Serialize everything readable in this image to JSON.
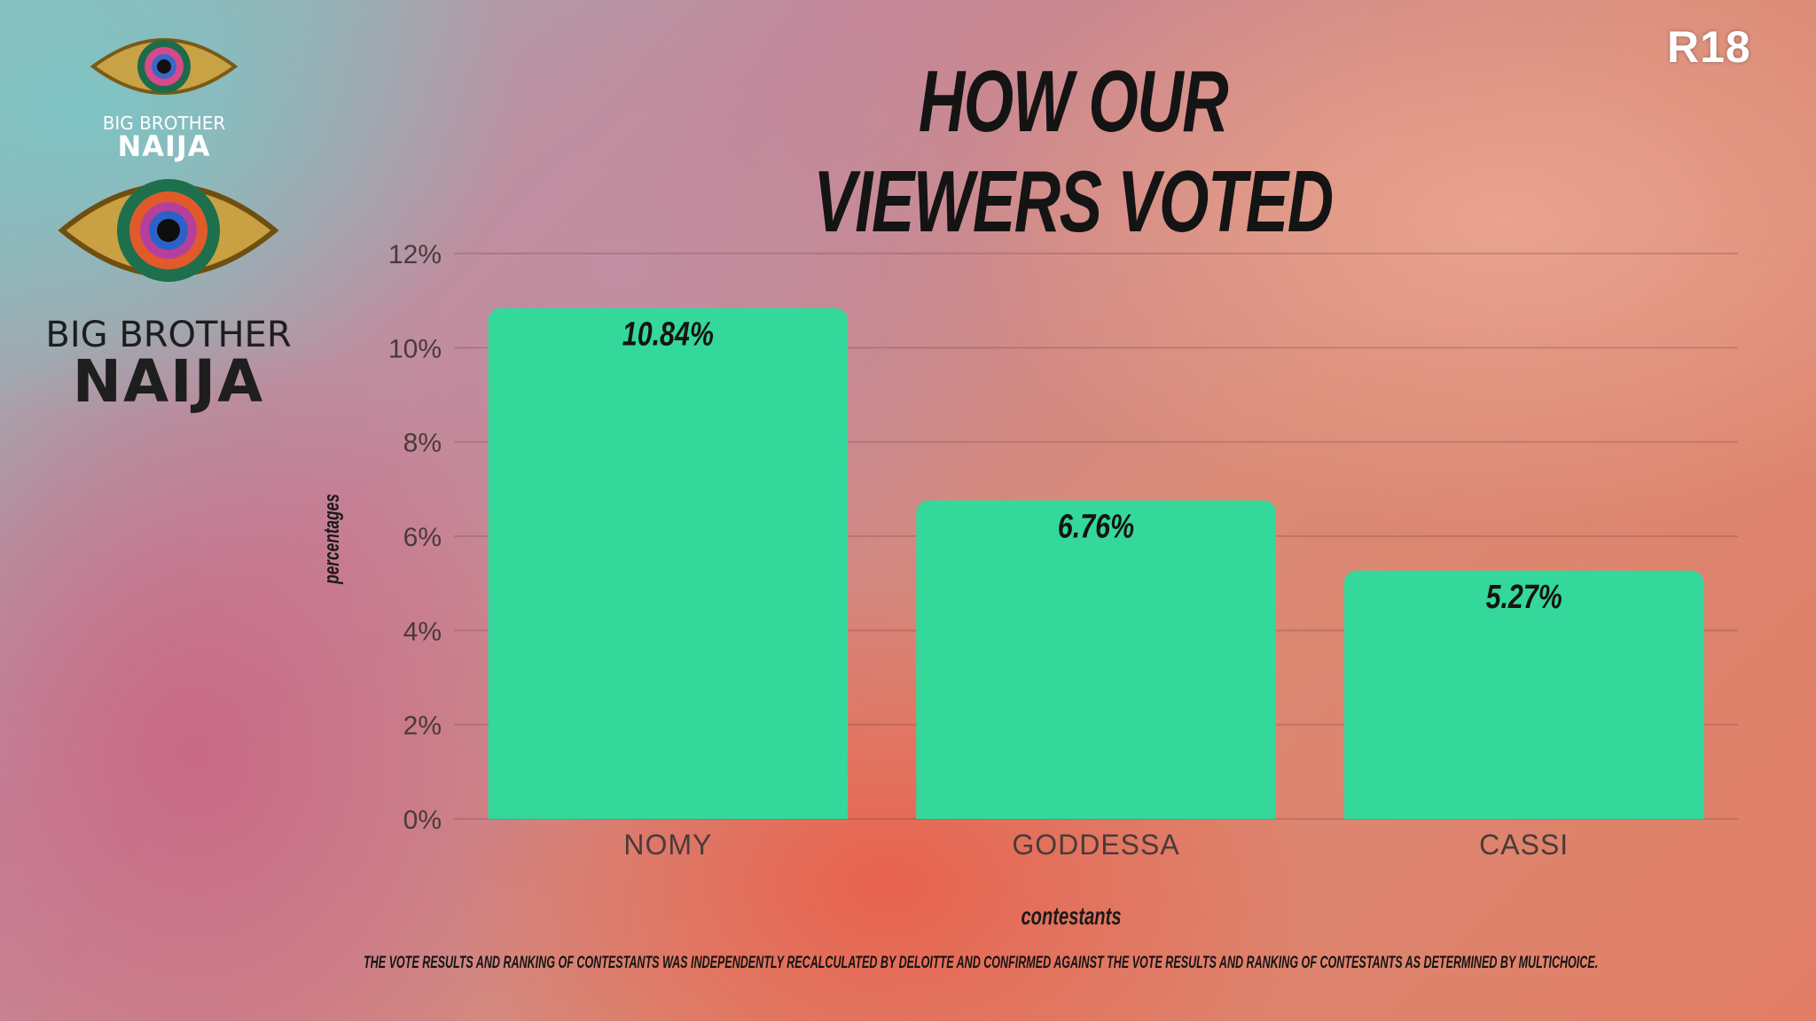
{
  "overlay": {
    "rating": "R18"
  },
  "logo": {
    "line1": "BIG BROTHER",
    "line2": "NAIJA"
  },
  "chart_data": {
    "type": "bar",
    "title": "HOW OUR VIEWERS VOTED",
    "categories": [
      "NOMY",
      "GODDESSA",
      "CASSI"
    ],
    "values": [
      10.84,
      6.76,
      5.27
    ],
    "data_labels": [
      "10.84%",
      "6.76%",
      "5.27%"
    ],
    "ylim": [
      0,
      12
    ],
    "yticks": [
      "0%",
      "2%",
      "4%",
      "6%",
      "8%",
      "10%",
      "12%"
    ],
    "ytick_values": [
      0,
      2,
      4,
      6,
      8,
      10,
      12
    ],
    "xlabel": "contestants",
    "ylabel": "percentages",
    "grid": true,
    "bar_color": "#34d89b"
  },
  "footer": {
    "disclaimer": "THE VOTE RESULTS AND RANKING OF CONTESTANTS WAS INDEPENDENTLY RECALCULATED BY DELOITTE AND CONFIRMED AGAINST THE VOTE RESULTS AND RANKING OF CONTESTANTS AS DETERMINED BY MULTICHOICE."
  }
}
